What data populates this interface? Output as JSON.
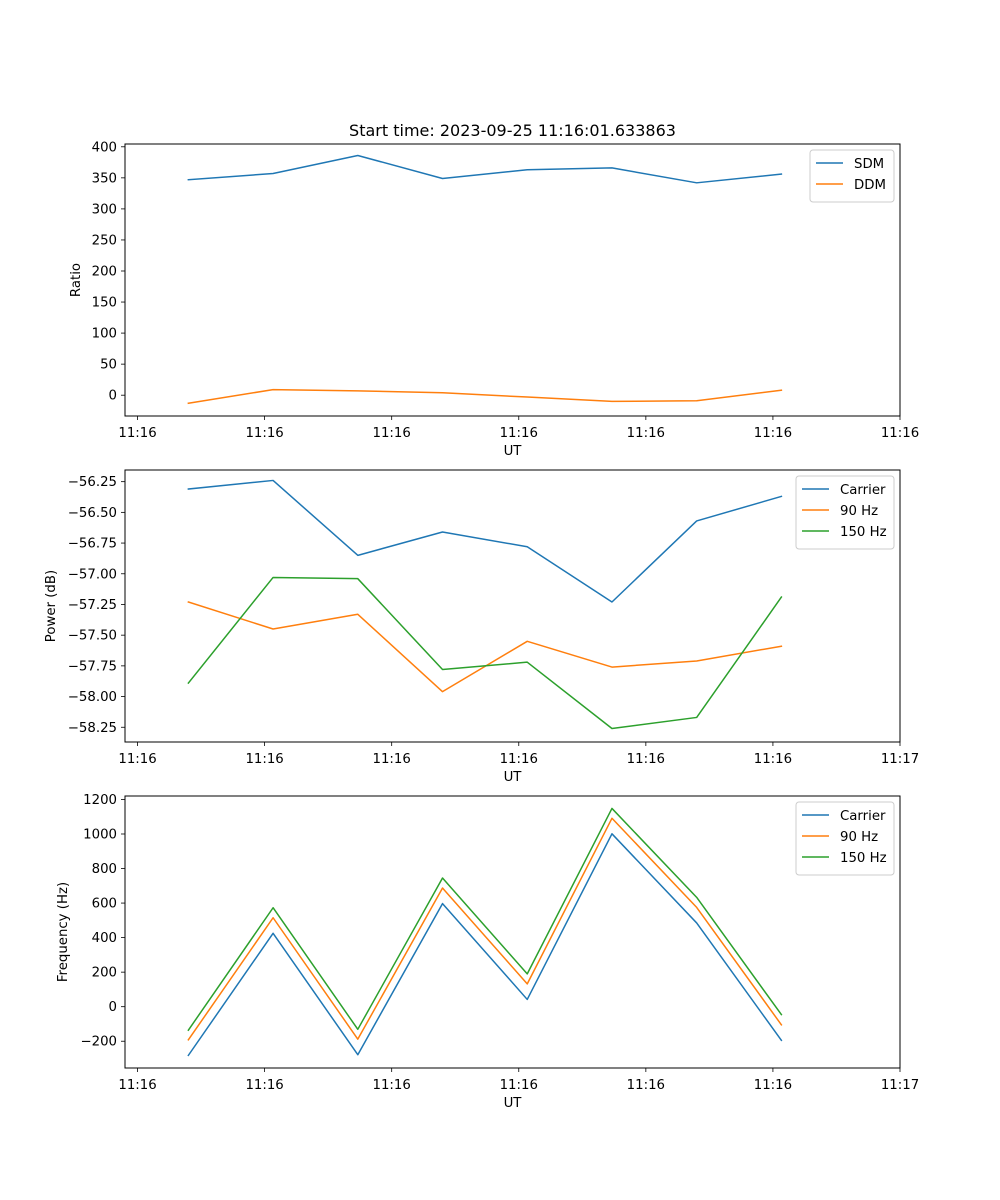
{
  "figure_title": "Start time: 2023-09-25 11:16:01.633863",
  "chart_data": [
    {
      "type": "line",
      "title": "Start time: 2023-09-25 11:16:01.633863",
      "xlabel": "UT",
      "ylabel": "Ratio",
      "x_ticks": [
        "11:16",
        "11:16",
        "11:16",
        "11:16",
        "11:16",
        "11:16",
        "11:16"
      ],
      "y_ticks": [
        "0",
        "50",
        "100",
        "150",
        "200",
        "250",
        "300",
        "350",
        "400"
      ],
      "y_tick_values": [
        0,
        50,
        100,
        150,
        200,
        250,
        300,
        350,
        400
      ],
      "ylim": [
        -33.5,
        404.5
      ],
      "x": [
        1,
        2,
        3,
        4,
        5,
        6,
        7,
        8
      ],
      "xlim": [
        0.2521,
        9.4
      ],
      "x_tick_positions": [
        0.4,
        1.9,
        3.4,
        4.9,
        6.4,
        7.9,
        9.4
      ],
      "legend_loc": "upper right",
      "series": [
        {
          "name": "SDM",
          "color": "#1f77b4",
          "values": [
            347,
            357,
            386,
            349,
            363,
            366,
            342,
            356
          ]
        },
        {
          "name": "DDM",
          "color": "#ff7f0e",
          "values": [
            -13,
            9,
            7,
            4,
            -3,
            -10,
            -9,
            8
          ]
        }
      ]
    },
    {
      "type": "line",
      "title": "",
      "xlabel": "UT",
      "ylabel": "Power (dB)",
      "x_ticks": [
        "11:16",
        "11:16",
        "11:16",
        "11:16",
        "11:16",
        "11:16",
        "11:17"
      ],
      "y_ticks": [
        "−58.25",
        "−58.00",
        "−57.75",
        "−57.50",
        "−57.25",
        "−57.00",
        "−56.75",
        "−56.50",
        "−56.25"
      ],
      "y_tick_values": [
        -58.25,
        -58.0,
        -57.75,
        -57.5,
        -57.25,
        -57.0,
        -56.75,
        -56.5,
        -56.25
      ],
      "ylim": [
        -58.37,
        -56.155
      ],
      "x": [
        1,
        2,
        3,
        4,
        5,
        6,
        7,
        8
      ],
      "xlim": [
        0.2521,
        9.4
      ],
      "x_tick_positions": [
        0.4,
        1.9,
        3.4,
        4.9,
        6.4,
        7.9,
        9.4
      ],
      "legend_loc": "upper right",
      "series": [
        {
          "name": "Carrier",
          "color": "#1f77b4",
          "values": [
            -56.31,
            -56.24,
            -56.85,
            -56.66,
            -56.78,
            -57.23,
            -56.57,
            -56.37
          ]
        },
        {
          "name": "90 Hz",
          "color": "#ff7f0e",
          "values": [
            -57.23,
            -57.45,
            -57.33,
            -57.96,
            -57.55,
            -57.76,
            -57.71,
            -57.59
          ]
        },
        {
          "name": "150 Hz",
          "color": "#2ca02c",
          "values": [
            -57.89,
            -57.03,
            -57.04,
            -57.78,
            -57.72,
            -58.26,
            -58.17,
            -57.19
          ]
        }
      ]
    },
    {
      "type": "line",
      "title": "",
      "xlabel": "UT",
      "ylabel": "Frequency (Hz)",
      "x_ticks": [
        "11:16",
        "11:16",
        "11:16",
        "11:16",
        "11:16",
        "11:16",
        "11:17"
      ],
      "y_ticks": [
        "−200",
        "0",
        "200",
        "400",
        "600",
        "800",
        "1000",
        "1200"
      ],
      "y_tick_values": [
        -200,
        0,
        200,
        400,
        600,
        800,
        1000,
        1200
      ],
      "ylim": [
        -355,
        1220
      ],
      "x": [
        1,
        2,
        3,
        4,
        5,
        6,
        7,
        8
      ],
      "xlim": [
        0.2521,
        9.4
      ],
      "x_tick_positions": [
        0.4,
        1.9,
        3.4,
        4.9,
        6.4,
        7.9,
        9.4
      ],
      "legend_loc": "upper right",
      "series": [
        {
          "name": "Carrier",
          "color": "#1f77b4",
          "values": [
            -282,
            425,
            -278,
            597,
            42,
            1001,
            485,
            -195
          ]
        },
        {
          "name": "90 Hz",
          "color": "#ff7f0e",
          "values": [
            -192,
            515,
            -188,
            687,
            132,
            1091,
            575,
            -105
          ]
        },
        {
          "name": "150 Hz",
          "color": "#2ca02c",
          "values": [
            -136,
            573,
            -131,
            745,
            190,
            1148,
            633,
            -46
          ]
        }
      ]
    }
  ]
}
